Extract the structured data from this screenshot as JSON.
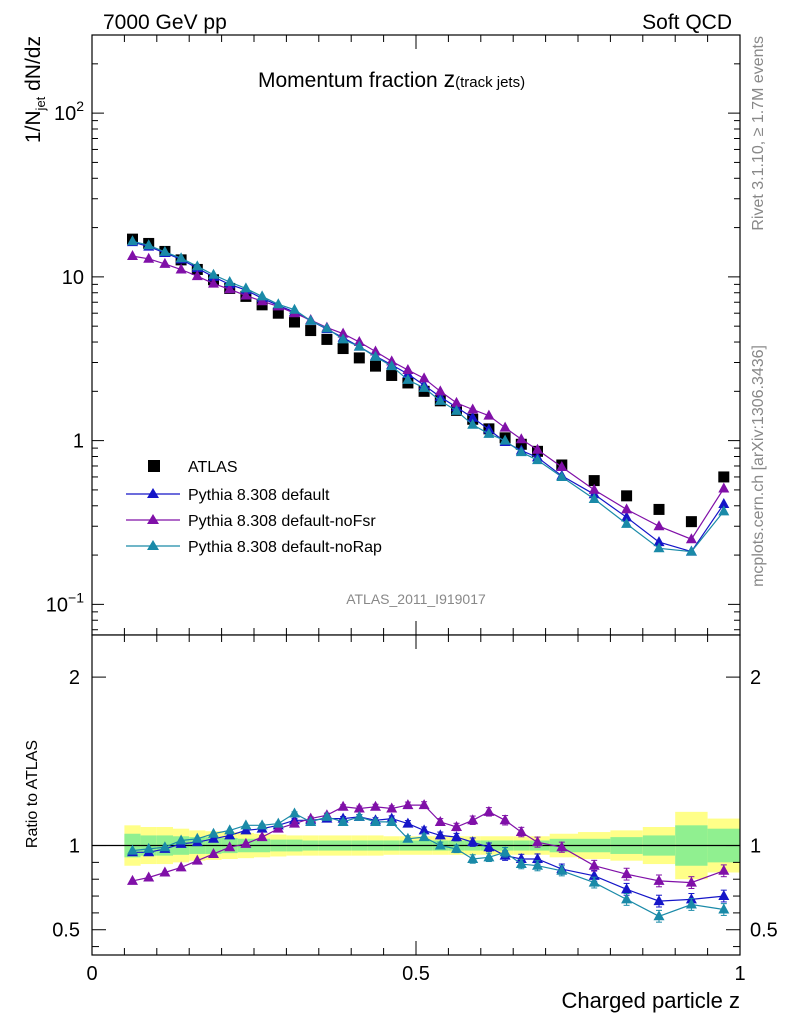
{
  "header": {
    "left": "7000 GeV pp",
    "right": "Soft QCD"
  },
  "side_labels": {
    "rivet": "Rivet 3.1.10, ≥ 1.7M events",
    "mcplots": "mcplots.cern.ch [arXiv:1306.3436]"
  },
  "chart_data": [
    {
      "type": "scatter",
      "title_main": "Momentum fraction ",
      "title_z": "z",
      "title_sub": "(track jets)",
      "ylabel_main": "1/N",
      "ylabel_sub": "jet",
      "ylabel_rest": " dN/dz",
      "yscale": "log",
      "ylim": [
        0.065,
        300
      ],
      "xlim": [
        0,
        1
      ],
      "y_tick_labels": [
        {
          "base": "10",
          "exp": "−1",
          "value": 0.1
        },
        {
          "base": "1",
          "exp": "",
          "value": 1
        },
        {
          "base": "10",
          "exp": "",
          "value": 10
        },
        {
          "base": "10",
          "exp": "2",
          "value": 100
        }
      ],
      "watermark": "ATLAS_2011_I919017",
      "legend_position": "lower-left",
      "x": [
        0.0625,
        0.0875,
        0.1125,
        0.1375,
        0.1625,
        0.1875,
        0.2125,
        0.2375,
        0.2625,
        0.2875,
        0.3125,
        0.3375,
        0.3625,
        0.3875,
        0.4125,
        0.4375,
        0.4625,
        0.4875,
        0.5125,
        0.5375,
        0.5625,
        0.5875,
        0.6125,
        0.6375,
        0.6625,
        0.6875,
        0.725,
        0.775,
        0.825,
        0.875,
        0.925,
        0.975
      ],
      "series": [
        {
          "name": "ATLAS",
          "color": "#000000",
          "marker": "square",
          "values": [
            17.0,
            16.0,
            14.3,
            12.7,
            11.1,
            9.6,
            8.5,
            7.6,
            6.75,
            6.0,
            5.3,
            4.7,
            4.15,
            3.65,
            3.2,
            2.85,
            2.5,
            2.25,
            2.0,
            1.75,
            1.53,
            1.35,
            1.18,
            1.04,
            0.95,
            0.86,
            0.71,
            0.57,
            0.46,
            0.38,
            0.32,
            0.6
          ]
        },
        {
          "name": "Pythia 8.308 default",
          "color": "#1515c8",
          "marker": "triangle",
          "values": [
            16.3,
            15.3,
            14.0,
            12.8,
            11.3,
            10.0,
            9.0,
            8.3,
            7.4,
            6.7,
            6.1,
            5.4,
            4.8,
            4.25,
            3.75,
            3.28,
            2.9,
            2.55,
            2.18,
            1.85,
            1.6,
            1.38,
            1.17,
            0.98,
            0.87,
            0.79,
            0.61,
            0.47,
            0.34,
            0.24,
            0.21,
            0.41
          ]
        },
        {
          "name": "Pythia 8.308 default-noFsr",
          "color": "#8010a8",
          "marker": "triangle",
          "values": [
            13.4,
            12.9,
            12.0,
            11.1,
            10.1,
            9.1,
            8.4,
            7.7,
            7.1,
            6.6,
            6.0,
            5.45,
            4.9,
            4.5,
            4.0,
            3.5,
            3.05,
            2.7,
            2.4,
            2.0,
            1.7,
            1.55,
            1.42,
            1.2,
            1.02,
            0.88,
            0.69,
            0.5,
            0.38,
            0.3,
            0.25,
            0.51
          ]
        },
        {
          "name": "Pythia 8.308 default-noRap",
          "color": "#1a8aa8",
          "marker": "triangle",
          "values": [
            16.5,
            15.6,
            14.2,
            13.0,
            11.6,
            10.3,
            9.3,
            8.5,
            7.6,
            6.8,
            6.3,
            5.4,
            4.85,
            4.15,
            3.75,
            3.25,
            2.85,
            2.35,
            2.1,
            1.75,
            1.52,
            1.25,
            1.1,
            1.0,
            0.85,
            0.76,
            0.6,
            0.44,
            0.31,
            0.22,
            0.21,
            0.37
          ]
        }
      ]
    },
    {
      "type": "scatter",
      "ylabel": "Ratio to ATLAS",
      "xlabel": "Charged particle z",
      "xlim": [
        0,
        1
      ],
      "ylim": [
        0.35,
        2.25
      ],
      "y_tick_labels": [
        "0.5",
        "1",
        "2"
      ],
      "x_tick_labels": [
        "0",
        "0.5",
        "1"
      ],
      "x": [
        0.0625,
        0.0875,
        0.1125,
        0.1375,
        0.1625,
        0.1875,
        0.2125,
        0.2375,
        0.2625,
        0.2875,
        0.3125,
        0.3375,
        0.3625,
        0.3875,
        0.4125,
        0.4375,
        0.4625,
        0.4875,
        0.5125,
        0.5375,
        0.5625,
        0.5875,
        0.6125,
        0.6375,
        0.6625,
        0.6875,
        0.725,
        0.775,
        0.825,
        0.875,
        0.925,
        0.975
      ],
      "uncertainty_band": {
        "inner_color": "#90f090",
        "outer_color": "#ffff88",
        "inner": [
          0.07,
          0.06,
          0.06,
          0.055,
          0.05,
          0.05,
          0.045,
          0.04,
          0.04,
          0.035,
          0.035,
          0.03,
          0.03,
          0.03,
          0.03,
          0.03,
          0.03,
          0.03,
          0.03,
          0.03,
          0.03,
          0.03,
          0.03,
          0.03,
          0.03,
          0.03,
          0.04,
          0.04,
          0.05,
          0.06,
          0.12,
          0.1
        ],
        "outer": [
          0.12,
          0.11,
          0.11,
          0.1,
          0.09,
          0.085,
          0.08,
          0.075,
          0.07,
          0.065,
          0.06,
          0.06,
          0.06,
          0.06,
          0.06,
          0.06,
          0.055,
          0.055,
          0.055,
          0.055,
          0.055,
          0.055,
          0.055,
          0.055,
          0.055,
          0.055,
          0.07,
          0.08,
          0.09,
          0.11,
          0.2,
          0.16
        ]
      },
      "series": [
        {
          "name": "Pythia 8.308 default",
          "color": "#1515c8",
          "values": [
            0.96,
            0.96,
            0.98,
            1.01,
            1.02,
            1.04,
            1.06,
            1.09,
            1.1,
            1.12,
            1.15,
            1.15,
            1.16,
            1.16,
            1.17,
            1.15,
            1.16,
            1.13,
            1.09,
            1.06,
            1.05,
            1.02,
            0.99,
            0.94,
            0.92,
            0.92,
            0.86,
            0.82,
            0.74,
            0.67,
            0.68,
            0.7
          ],
          "errors": [
            0.005,
            0.005,
            0.005,
            0.005,
            0.005,
            0.005,
            0.005,
            0.005,
            0.008,
            0.008,
            0.01,
            0.01,
            0.012,
            0.012,
            0.014,
            0.015,
            0.016,
            0.018,
            0.02,
            0.02,
            0.022,
            0.025,
            0.025,
            0.028,
            0.028,
            0.03,
            0.03,
            0.032,
            0.035,
            0.035,
            0.035,
            0.035
          ]
        },
        {
          "name": "Pythia 8.308 default-noFsr",
          "color": "#8010a8",
          "values": [
            0.79,
            0.81,
            0.84,
            0.87,
            0.91,
            0.95,
            0.99,
            1.01,
            1.05,
            1.1,
            1.13,
            1.16,
            1.18,
            1.23,
            1.22,
            1.23,
            1.22,
            1.24,
            1.24,
            1.14,
            1.11,
            1.15,
            1.2,
            1.15,
            1.08,
            1.02,
            0.99,
            0.88,
            0.83,
            0.79,
            0.78,
            0.85
          ],
          "errors": [
            0.005,
            0.005,
            0.005,
            0.005,
            0.005,
            0.005,
            0.005,
            0.005,
            0.008,
            0.008,
            0.01,
            0.01,
            0.012,
            0.012,
            0.014,
            0.015,
            0.016,
            0.018,
            0.02,
            0.02,
            0.022,
            0.025,
            0.025,
            0.028,
            0.028,
            0.03,
            0.03,
            0.032,
            0.035,
            0.035,
            0.035,
            0.035
          ]
        },
        {
          "name": "Pythia 8.308 default-noRap",
          "color": "#1a8aa8",
          "values": [
            0.97,
            0.98,
            0.99,
            1.03,
            1.04,
            1.07,
            1.09,
            1.12,
            1.12,
            1.13,
            1.19,
            1.14,
            1.17,
            1.14,
            1.17,
            1.14,
            1.14,
            1.04,
            1.05,
            1.0,
            0.98,
            0.92,
            0.93,
            0.96,
            0.89,
            0.88,
            0.85,
            0.78,
            0.68,
            0.58,
            0.65,
            0.62
          ],
          "errors": [
            0.005,
            0.005,
            0.005,
            0.005,
            0.005,
            0.005,
            0.005,
            0.005,
            0.008,
            0.008,
            0.01,
            0.01,
            0.012,
            0.012,
            0.014,
            0.015,
            0.016,
            0.018,
            0.02,
            0.02,
            0.022,
            0.025,
            0.025,
            0.028,
            0.028,
            0.03,
            0.03,
            0.032,
            0.035,
            0.035,
            0.035,
            0.035
          ]
        }
      ]
    }
  ]
}
